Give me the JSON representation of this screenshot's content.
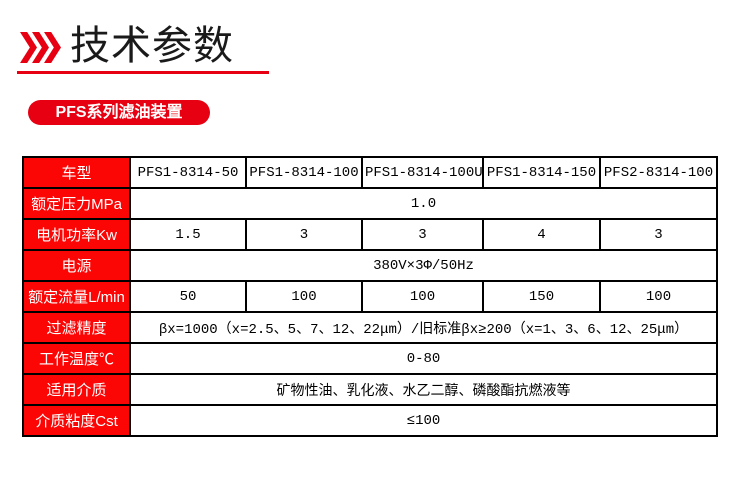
{
  "colors": {
    "accent": "#e60012",
    "table_header_bg": "#fb0505",
    "table_border": "#000000",
    "page_bg": "#ffffff"
  },
  "header": {
    "title": "技术参数",
    "icon": "triple-right-chevrons-icon"
  },
  "badge": {
    "label": "PFS系列滤油装置"
  },
  "table": {
    "rows": [
      {
        "label": "车型",
        "cells": [
          "PFS1-8314-50",
          "PFS1-8314-100",
          "PFS1-8314-100U",
          "PFS1-8314-150",
          "PFS2-8314-100"
        ]
      },
      {
        "label": "额定压力MPa",
        "span": "1.0"
      },
      {
        "label": "电机功率Kw",
        "cells": [
          "1.5",
          "3",
          "3",
          "4",
          "3"
        ]
      },
      {
        "label": "电源",
        "span": "380V×3Φ/50Hz"
      },
      {
        "label": "额定流量L/min",
        "cells": [
          "50",
          "100",
          "100",
          "150",
          "100"
        ]
      },
      {
        "label": "过滤精度",
        "span": "βx=1000（x=2.5、5、7、12、22μm）/旧标准βx≥200（x=1、3、6、12、25μm）"
      },
      {
        "label": "工作温度℃",
        "span": "0-80"
      },
      {
        "label": "适用介质",
        "span": "矿物性油、乳化液、水乙二醇、磷酸酯抗燃液等"
      },
      {
        "label": "介质粘度Cst",
        "span": "≤100"
      }
    ]
  }
}
